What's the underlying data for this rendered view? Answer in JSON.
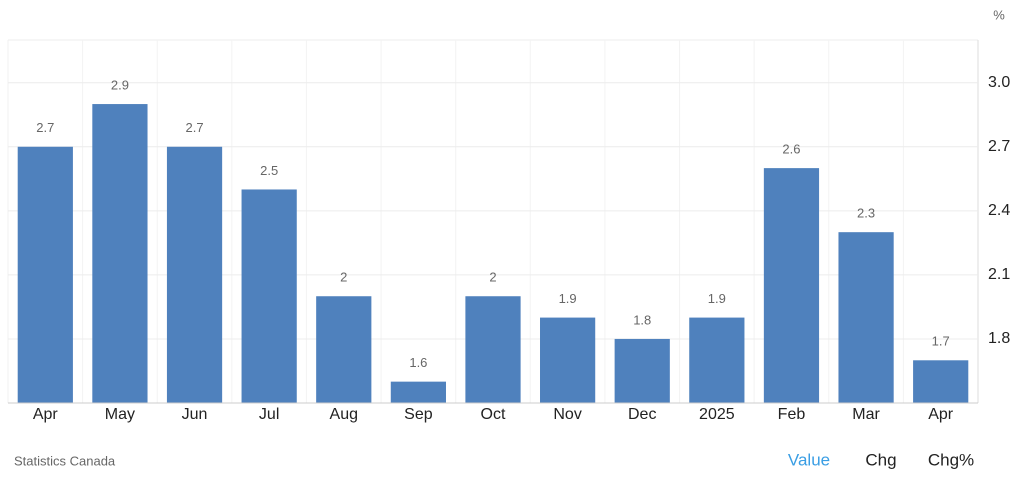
{
  "chart_data": {
    "type": "bar",
    "unit": "%",
    "categories": [
      "Apr",
      "May",
      "Jun",
      "Jul",
      "Aug",
      "Sep",
      "Oct",
      "Nov",
      "Dec",
      "2025",
      "Feb",
      "Mar",
      "Apr"
    ],
    "values": [
      2.7,
      2.9,
      2.7,
      2.5,
      2,
      1.6,
      2,
      1.9,
      1.8,
      1.9,
      2.6,
      2.3,
      1.7
    ],
    "color": "#4f81bd",
    "ylim": [
      1.5,
      3.2
    ],
    "yticks": [
      1.8,
      2.1,
      2.4,
      2.7,
      {
        "value": 3,
        "label": "3.0"
      }
    ],
    "grid": true
  },
  "source": "Statistics Canada",
  "tabs": [
    "Value",
    "Chg",
    "Chg%"
  ]
}
